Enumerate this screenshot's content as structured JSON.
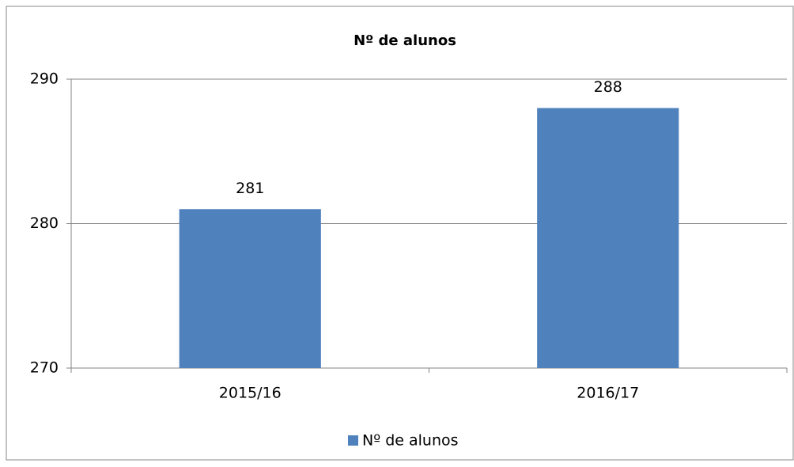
{
  "chart_data": {
    "type": "bar",
    "title": "Nº de alunos",
    "categories": [
      "2015/16",
      "2016/17"
    ],
    "series": [
      {
        "name": "Nº de alunos",
        "color": "#4f81bd",
        "values": [
          281,
          288
        ]
      }
    ],
    "ylim": [
      270,
      290
    ],
    "yticks": [
      270,
      280,
      290
    ],
    "grid": true,
    "legend": "bottom"
  }
}
